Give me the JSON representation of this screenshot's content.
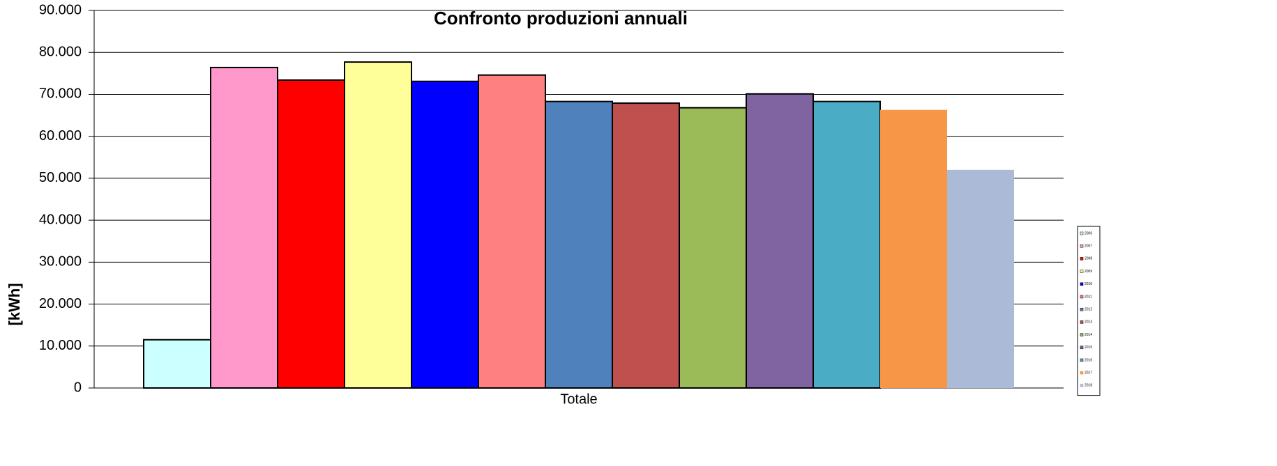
{
  "chart_data": {
    "type": "bar",
    "title": "Confronto produzioni annuali",
    "y_label": "[kWh]",
    "categories": [
      "Totale"
    ],
    "series": [
      {
        "name": "2006",
        "color": "#ccffff",
        "edgecolor": "#000000",
        "values": [
          11500
        ]
      },
      {
        "name": "2007",
        "color": "#ff99cc",
        "edgecolor": "#000000",
        "values": [
          76400
        ]
      },
      {
        "name": "2008",
        "color": "#ff0000",
        "edgecolor": "#000000",
        "values": [
          73400
        ]
      },
      {
        "name": "2009",
        "color": "#ffff99",
        "edgecolor": "#000000",
        "values": [
          77700
        ]
      },
      {
        "name": "2010",
        "color": "#0000ff",
        "edgecolor": "#000000",
        "values": [
          73100
        ]
      },
      {
        "name": "2011",
        "color": "#ff8080",
        "edgecolor": "#000000",
        "values": [
          74600
        ]
      },
      {
        "name": "2012",
        "color": "#4f81bd",
        "edgecolor": "#000000",
        "values": [
          68300
        ]
      },
      {
        "name": "2013",
        "color": "#c0504d",
        "edgecolor": "#000000",
        "values": [
          67900
        ]
      },
      {
        "name": "2014",
        "color": "#9bbb59",
        "edgecolor": "#000000",
        "values": [
          66800
        ]
      },
      {
        "name": "2015",
        "color": "#8064a2",
        "edgecolor": "#000000",
        "values": [
          70100
        ]
      },
      {
        "name": "2016",
        "color": "#4bacc6",
        "edgecolor": "#000000",
        "values": [
          68300
        ]
      },
      {
        "name": "2017",
        "color": "#f79646",
        "edgecolor": "none",
        "values": [
          66300
        ]
      },
      {
        "name": "2018",
        "color": "#aabad7",
        "edgecolor": "none",
        "values": [
          52000
        ]
      }
    ],
    "ylim": [
      0,
      90000
    ],
    "yticks": [
      0,
      {
        "value": 10000,
        "label": "10.000"
      },
      {
        "value": 20000,
        "label": "20.000"
      },
      {
        "value": 30000,
        "label": "30.000"
      },
      {
        "value": 40000,
        "label": "40.000"
      },
      {
        "value": 50000,
        "label": "50.000"
      },
      {
        "value": 60000,
        "label": "60.000"
      },
      {
        "value": 70000,
        "label": "70.000"
      },
      {
        "value": 80000,
        "label": "80.000"
      },
      {
        "value": 90000,
        "label": "90.000"
      }
    ],
    "grid": true,
    "legend": "right"
  }
}
